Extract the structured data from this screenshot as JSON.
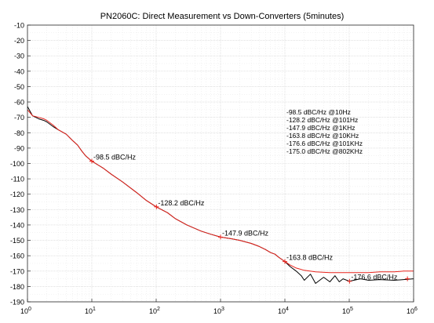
{
  "chart_data": {
    "type": "line",
    "title": "PN2060C: Direct Measurement vs Down-Converters (5minutes)",
    "xlabel": "",
    "ylabel": "",
    "xscale": "log",
    "xlim": [
      1,
      1000000
    ],
    "ylim": [
      -190,
      -10
    ],
    "grid": true,
    "x_tick_base": "10",
    "x_tick_exponents": [
      "0",
      "1",
      "2",
      "3",
      "4",
      "5",
      "6"
    ],
    "y_ticks": [
      "-10",
      "-20",
      "-30",
      "-40",
      "-50",
      "-60",
      "-70",
      "-80",
      "-90",
      "-100",
      "-110",
      "-120",
      "-130",
      "-140",
      "-150",
      "-160",
      "-170",
      "-180",
      "-190"
    ],
    "series": [
      {
        "color": "#000000",
        "x": [
          1,
          1.2,
          1.5,
          1.8,
          2,
          2.5,
          3,
          4,
          5,
          6,
          7,
          8,
          10,
          15,
          20,
          30,
          50,
          70,
          100,
          150,
          200,
          300,
          500,
          700,
          1000,
          1500,
          2000,
          3000,
          4000,
          5000,
          6000,
          7000,
          8000,
          10000,
          12000,
          15000,
          18000,
          20000,
          25000,
          30000,
          40000,
          50000,
          60000,
          70000,
          80000,
          100000,
          150000,
          200000,
          300000,
          500000,
          700000,
          1000000
        ],
        "y": [
          -63,
          -69,
          -71,
          -72,
          -73,
          -76,
          -78,
          -81,
          -85,
          -88,
          -92,
          -95,
          -98.5,
          -103,
          -107,
          -112,
          -119,
          -124,
          -128.2,
          -132,
          -136,
          -140,
          -144,
          -146,
          -147.9,
          -149,
          -150,
          -152,
          -154,
          -156,
          -158,
          -159,
          -161,
          -163.8,
          -167,
          -170,
          -173,
          -176,
          -172,
          -178,
          -174,
          -177,
          -173,
          -177,
          -175,
          -176.6,
          -175,
          -176,
          -175.5,
          -176,
          -175.5,
          -175
        ]
      },
      {
        "color": "#e8231c",
        "x": [
          1,
          1.2,
          1.5,
          1.8,
          2,
          2.5,
          3,
          4,
          5,
          6,
          7,
          8,
          10,
          15,
          20,
          30,
          50,
          70,
          100,
          150,
          200,
          300,
          500,
          700,
          1000,
          1500,
          2000,
          3000,
          4000,
          5000,
          6000,
          7000,
          8000,
          10000,
          12000,
          15000,
          20000,
          30000,
          50000,
          70000,
          100000,
          150000,
          200000,
          300000,
          500000,
          700000,
          802000,
          1000000
        ],
        "y": [
          -65,
          -69,
          -70,
          -71,
          -72,
          -75,
          -78,
          -81,
          -85,
          -88,
          -92,
          -95,
          -98.5,
          -103,
          -107,
          -112,
          -119,
          -124,
          -128.2,
          -132,
          -136,
          -140,
          -144,
          -146,
          -147.9,
          -149,
          -150,
          -152,
          -154,
          -156,
          -158,
          -159,
          -161,
          -163.8,
          -166,
          -168,
          -169.5,
          -170.5,
          -171,
          -171,
          -171,
          -171,
          -171,
          -170.5,
          -170.5,
          -170,
          -170,
          -170
        ]
      }
    ],
    "markers": [
      {
        "x": 10,
        "y": -98.5,
        "label": "-98.5 dBC/Hz"
      },
      {
        "x": 101,
        "y": -128.2,
        "label": "-128.2 dBC/Hz"
      },
      {
        "x": 1000,
        "y": -147.9,
        "label": "-147.9 dBC/Hz"
      },
      {
        "x": 10000,
        "y": -163.8,
        "label": "-163.8 dBC/Hz"
      },
      {
        "x": 101000,
        "y": -176.6,
        "label": "-176.6 dBC/Hz"
      },
      {
        "x": 802000,
        "y": -175.0,
        "label": ""
      }
    ],
    "annotation_lines": [
      "-98.5 dBC/Hz @10Hz",
      "-128.2 dBC/Hz @101Hz",
      "-147.9 dBC/Hz @1KHz",
      "-163.8 dBC/Hz @10KHz",
      "-176.6 dBC/Hz @101KHz",
      "-175.0 dBC/Hz @802KHz"
    ]
  }
}
